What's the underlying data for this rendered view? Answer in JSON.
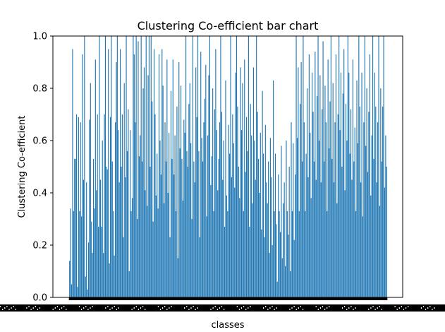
{
  "chart_data": {
    "type": "bar",
    "title": "Clustering Co-efficient bar chart",
    "xlabel": "classes",
    "ylabel": "Clustering Co-efficient",
    "ylim": [
      0,
      1.0
    ],
    "yticks": [
      "0.0",
      "0.2",
      "0.4",
      "0.6",
      "0.8",
      "1.0"
    ],
    "grid": false,
    "legend": "none",
    "bar_color": "#1f77b4",
    "x_tick_labels_note_visible": false,
    "values": [
      0.14,
      0.34,
      0.05,
      0.95,
      0.33,
      0.53,
      0.53,
      0.7,
      0.04,
      0.69,
      0.33,
      0.67,
      0.31,
      0.93,
      0.45,
      1.0,
      0.08,
      0.44,
      0.03,
      0.21,
      0.68,
      0.82,
      0.29,
      0.17,
      0.53,
      0.34,
      0.91,
      0.41,
      0.7,
      0.27,
      1.0,
      0.45,
      0.27,
      0.6,
      0.17,
      0.7,
      1.0,
      0.5,
      0.49,
      0.95,
      0.13,
      0.69,
      1.0,
      0.52,
      0.33,
      0.16,
      0.67,
      0.9,
      1.0,
      0.64,
      0.44,
      0.95,
      0.5,
      0.7,
      0.23,
      0.82,
      0.46,
      1.0,
      0.56,
      0.72,
      0.1,
      0.64,
      0.33,
      0.38,
      1.0,
      0.93,
      0.67,
      1.0,
      0.3,
      0.98,
      0.54,
      0.62,
      1.0,
      0.52,
      0.8,
      0.88,
      0.41,
      1.0,
      0.35,
      0.85,
      1.0,
      0.5,
      1.0,
      0.75,
      0.29,
      0.95,
      0.7,
      0.39,
      0.55,
      0.34,
      0.93,
      0.6,
      0.47,
      0.95,
      0.81,
      0.36,
      0.67,
      0.52,
      0.91,
      0.4,
      0.63,
      0.23,
      0.79,
      0.53,
      0.91,
      0.47,
      0.62,
      0.33,
      0.73,
      0.15,
      0.9,
      0.57,
      0.81,
      0.53,
      0.37,
      0.68,
      0.63,
      1.0,
      0.56,
      0.5,
      0.74,
      0.82,
      0.59,
      0.3,
      1.0,
      0.52,
      0.44,
      0.88,
      0.69,
      1.0,
      0.56,
      0.23,
      0.94,
      0.61,
      0.52,
      0.67,
      0.76,
      0.89,
      0.31,
      0.62,
      0.85,
      1.0,
      0.43,
      0.54,
      0.8,
      0.33,
      0.72,
      0.95,
      0.64,
      0.41,
      0.53,
      0.67,
      1.0,
      0.71,
      0.45,
      0.6,
      0.27,
      0.83,
      0.39,
      0.33,
      0.66,
      0.55,
      1.0,
      0.46,
      0.7,
      0.59,
      0.42,
      0.86,
      1.0,
      0.73,
      0.5,
      0.38,
      0.88,
      0.64,
      0.82,
      0.33,
      0.91,
      0.48,
      0.69,
      0.56,
      1.0,
      0.27,
      0.74,
      0.62,
      0.36,
      0.88,
      0.6,
      0.45,
      1.0,
      0.71,
      0.53,
      0.4,
      0.63,
      0.26,
      0.79,
      0.55,
      0.23,
      0.66,
      0.44,
      0.36,
      0.52,
      0.17,
      0.61,
      0.46,
      0.2,
      0.83,
      0.33,
      0.55,
      0.28,
      0.06,
      0.47,
      0.33,
      0.25,
      0.58,
      0.15,
      0.36,
      0.44,
      0.12,
      0.6,
      0.33,
      0.24,
      0.5,
      0.1,
      0.67,
      0.33,
      0.59,
      0.22,
      0.47,
      1.0,
      0.61,
      0.88,
      0.33,
      0.74,
      0.9,
      0.52,
      1.0,
      0.67,
      0.33,
      0.55,
      0.8,
      0.46,
      0.93,
      0.63,
      0.38,
      0.86,
      0.71,
      0.52,
      0.94,
      0.45,
      0.77,
      1.0,
      0.6,
      0.85,
      0.44,
      0.72,
      0.98,
      0.52,
      0.81,
      0.67,
      0.33,
      0.91,
      0.57,
      0.75,
      1.0,
      0.53,
      0.82,
      0.44,
      0.67,
      0.93,
      0.36,
      0.7,
      1.0,
      0.64,
      0.86,
      0.5,
      0.78,
      0.95,
      0.41,
      0.74,
      0.6,
      1.0,
      0.86,
      0.55,
      0.72,
      0.45,
      0.91,
      0.52,
      0.65,
      0.33,
      0.83,
      0.59,
      1.0,
      0.73,
      0.44,
      0.86,
      0.31,
      0.67,
      1.0,
      0.58,
      0.8,
      0.48,
      0.71,
      0.93,
      0.39,
      0.62,
      1.0,
      0.53,
      0.86,
      0.73,
      0.44,
      0.67,
      1.0,
      0.35,
      0.8,
      0.52,
      0.73,
      1.0,
      0.42,
      0.62,
      0.5
    ]
  }
}
